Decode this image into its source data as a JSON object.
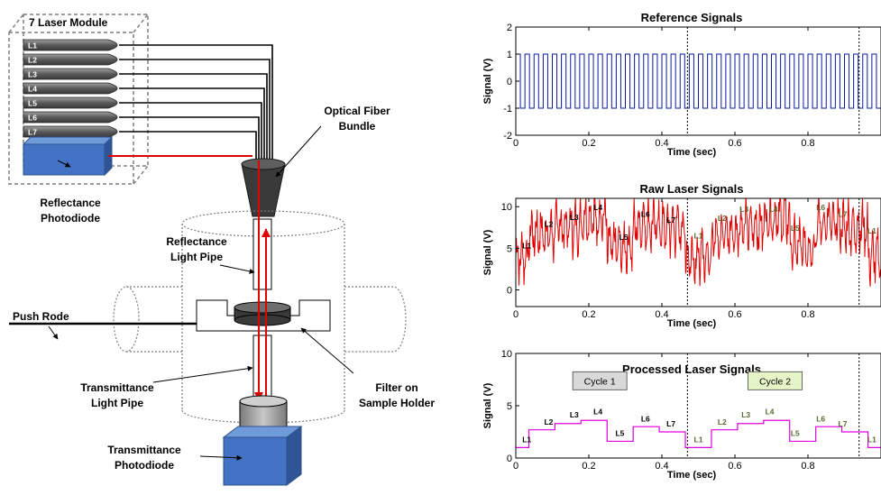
{
  "diagram": {
    "module_title": "7 Laser Module",
    "lasers": [
      "L1",
      "L2",
      "L3",
      "L4",
      "L5",
      "L6",
      "L7"
    ],
    "reflectance_photodiode": [
      "Reflectance",
      "Photodiode"
    ],
    "optical_fiber_bundle": [
      "Optical Fiber",
      "Bundle"
    ],
    "reflectance_light_pipe": [
      "Reflectance",
      "Light Pipe"
    ],
    "push_rode": "Push Rode",
    "transmittance_light_pipe": [
      "Transmittance",
      "Light Pipe"
    ],
    "filter_on_sample_holder": [
      "Filter on",
      "Sample Holder"
    ],
    "transmittance_photodiode": [
      "Transmittance",
      "Photodiode"
    ]
  },
  "chart_data": [
    {
      "type": "line",
      "title": "Reference Signals",
      "xlabel": "Time (sec)",
      "ylabel": "Signal (V)",
      "xlim": [
        0,
        1
      ],
      "ylim": [
        -2,
        2
      ],
      "xticks": [
        "0",
        "0.2",
        "0.4",
        "0.6",
        "0.8"
      ],
      "yticks": [
        "-2",
        "-1",
        "0",
        "1",
        "2"
      ],
      "series": [
        {
          "color": "#0a1aa0",
          "square_wave": {
            "low": -1,
            "high": 1,
            "period": 0.025
          }
        }
      ],
      "cycle_boundaries": [
        0.47,
        0.94
      ]
    },
    {
      "type": "line",
      "title": "Raw Laser Signals",
      "xlabel": "Time (sec)",
      "ylabel": "Signal (V)",
      "xlim": [
        0,
        1
      ],
      "ylim": [
        -2,
        11
      ],
      "xticks": [
        "0",
        "0.2",
        "0.4",
        "0.6",
        "0.8"
      ],
      "yticks": [
        "0",
        "5",
        "10"
      ],
      "series": [
        {
          "color": "#e00000",
          "segment_levels": [
            4.0,
            6.8,
            7.6,
            8.6,
            5.2,
            7.9,
            7.5,
            4.0,
            6.8,
            7.6,
            8.6,
            5.2,
            7.9,
            7.5,
            4.0
          ]
        }
      ],
      "annotations": [
        {
          "text": "L1",
          "x": 0.03,
          "y": 5.0
        },
        {
          "text": "L2",
          "x": 0.09,
          "y": 7.6
        },
        {
          "text": "L3",
          "x": 0.16,
          "y": 8.4
        },
        {
          "text": "L4",
          "x": 0.225,
          "y": 9.6
        },
        {
          "text": "L5",
          "x": 0.295,
          "y": 6.0
        },
        {
          "text": "L6",
          "x": 0.355,
          "y": 8.8
        },
        {
          "text": "L7",
          "x": 0.425,
          "y": 8.1
        },
        {
          "text": "L1",
          "x": 0.5,
          "y": 6.2
        },
        {
          "text": "L2",
          "x": 0.565,
          "y": 8.3
        },
        {
          "text": "L3",
          "x": 0.625,
          "y": 9.4
        },
        {
          "text": "L4",
          "x": 0.705,
          "y": 9.4
        },
        {
          "text": "L5",
          "x": 0.765,
          "y": 7.1
        },
        {
          "text": "L6",
          "x": 0.835,
          "y": 9.6
        },
        {
          "text": "L7",
          "x": 0.895,
          "y": 8.8
        },
        {
          "text": "L1",
          "x": 0.975,
          "y": 6.8
        }
      ],
      "cycle_boundaries": [
        0.47,
        0.94
      ]
    },
    {
      "type": "line",
      "title": "Processed Laser Signals",
      "xlabel": "Time (sec)",
      "ylabel": "Signal (V)",
      "xlim": [
        0,
        1
      ],
      "ylim": [
        0,
        10
      ],
      "xticks": [
        "0",
        "0.2",
        "0.4",
        "0.6",
        "0.8"
      ],
      "yticks": [
        "0",
        "5",
        "10"
      ],
      "series": [
        {
          "color": "#e000e0",
          "steps": [
            1.0,
            2.7,
            3.3,
            3.6,
            1.6,
            3.0,
            2.5,
            1.0,
            2.7,
            3.3,
            3.6,
            1.6,
            3.0,
            2.5,
            1.0
          ]
        }
      ],
      "annotations": [
        {
          "text": "L1",
          "x": 0.03,
          "y": 1.5
        },
        {
          "text": "L2",
          "x": 0.09,
          "y": 3.2
        },
        {
          "text": "L3",
          "x": 0.16,
          "y": 3.9
        },
        {
          "text": "L4",
          "x": 0.225,
          "y": 4.2
        },
        {
          "text": "L5",
          "x": 0.285,
          "y": 2.1
        },
        {
          "text": "L6",
          "x": 0.355,
          "y": 3.5
        },
        {
          "text": "L7",
          "x": 0.425,
          "y": 3.0
        },
        {
          "text": "L1",
          "x": 0.5,
          "y": 1.5
        },
        {
          "text": "L2",
          "x": 0.565,
          "y": 3.2
        },
        {
          "text": "L3",
          "x": 0.63,
          "y": 3.9
        },
        {
          "text": "L4",
          "x": 0.695,
          "y": 4.2
        },
        {
          "text": "L5",
          "x": 0.765,
          "y": 2.1
        },
        {
          "text": "L6",
          "x": 0.835,
          "y": 3.5
        },
        {
          "text": "L7",
          "x": 0.895,
          "y": 3.0
        },
        {
          "text": "L1",
          "x": 0.975,
          "y": 1.5
        }
      ],
      "cycle_boxes": [
        {
          "text": "Cycle 1",
          "x": 0.23,
          "y": 7.3,
          "fill": "#d9d9d9"
        },
        {
          "text": "Cycle 2",
          "x": 0.71,
          "y": 7.3,
          "fill": "#e6f5c8"
        }
      ],
      "cycle_boundaries": [
        0.47,
        0.94
      ]
    }
  ]
}
